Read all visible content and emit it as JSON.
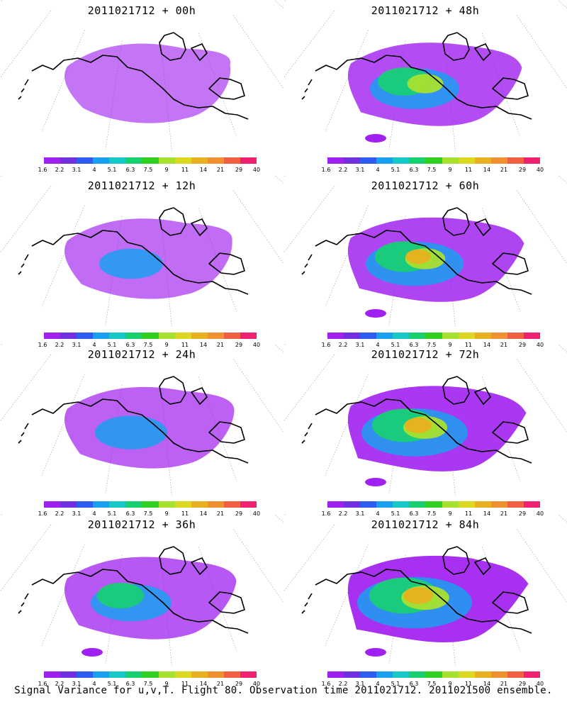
{
  "footer": {
    "caption": "Signal Variance for u,v,T. Flight 80. Observation time 2011021712. 2011021500 ensemble."
  },
  "colorbar": {
    "labels": [
      "1.6",
      "2.2",
      "3.1",
      "4",
      "5.1",
      "6.3",
      "7.5",
      "9",
      "11",
      "14",
      "21",
      "29",
      "40"
    ],
    "colors": [
      "#a020f0",
      "#7030e0",
      "#2e5cf0",
      "#1aa0f0",
      "#17c8c8",
      "#18d070",
      "#30d020",
      "#a8e030",
      "#dcd820",
      "#e8b020",
      "#f09030",
      "#f06040",
      "#f02070"
    ]
  },
  "panels": [
    {
      "title": "2011021712 + 00h",
      "lead_hours": 0,
      "variance_level": 0.15
    },
    {
      "title": "2011021712 + 48h",
      "lead_hours": 48,
      "variance_level": 0.55
    },
    {
      "title": "2011021712 + 12h",
      "lead_hours": 12,
      "variance_level": 0.25
    },
    {
      "title": "2011021712 + 60h",
      "lead_hours": 60,
      "variance_level": 0.65
    },
    {
      "title": "2011021712 + 24h",
      "lead_hours": 24,
      "variance_level": 0.35
    },
    {
      "title": "2011021712 + 72h",
      "lead_hours": 72,
      "variance_level": 0.75
    },
    {
      "title": "2011021712 + 36h",
      "lead_hours": 36,
      "variance_level": 0.45
    },
    {
      "title": "2011021712 + 84h",
      "lead_hours": 84,
      "variance_level": 0.85
    }
  ]
}
